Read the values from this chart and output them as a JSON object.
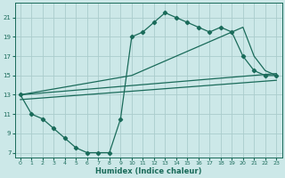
{
  "title": "",
  "xlabel": "Humidex (Indice chaleur)",
  "bg_color": "#cce8e8",
  "grid_color": "#aacccc",
  "line_color": "#1a6b5a",
  "xlim": [
    -0.5,
    23.5
  ],
  "ylim": [
    6.5,
    22.5
  ],
  "xticks": [
    0,
    1,
    2,
    3,
    4,
    5,
    6,
    7,
    8,
    9,
    10,
    11,
    12,
    13,
    14,
    15,
    16,
    17,
    18,
    19,
    20,
    21,
    22,
    23
  ],
  "yticks": [
    7,
    9,
    11,
    13,
    15,
    17,
    19,
    21
  ],
  "series_main_x": [
    0,
    1,
    2,
    3,
    4,
    5,
    6,
    7,
    8,
    9,
    10,
    11,
    12,
    13,
    14,
    15,
    16,
    17,
    18,
    19,
    20,
    21,
    22,
    23
  ],
  "series_main_y": [
    13,
    11,
    10.5,
    9.5,
    8.5,
    7.5,
    7.0,
    7.0,
    7.0,
    10.5,
    19.0,
    19.5,
    20.5,
    21.5,
    21.0,
    20.5,
    20.0,
    19.5,
    20.0,
    19.5,
    17.0,
    15.5,
    15.0,
    15.0
  ],
  "series_upper_x": [
    0,
    10,
    11,
    12,
    13,
    14,
    15,
    16,
    17,
    18,
    19,
    20,
    21,
    22,
    23
  ],
  "series_upper_y": [
    13,
    15.0,
    15.5,
    16.0,
    16.5,
    17.0,
    17.5,
    18.0,
    18.5,
    19.0,
    19.5,
    20.0,
    17.0,
    15.5,
    15.0
  ],
  "series_line1_x": [
    0,
    23
  ],
  "series_line1_y": [
    13.0,
    15.2
  ],
  "series_line2_x": [
    0,
    23
  ],
  "series_line2_y": [
    12.5,
    14.5
  ]
}
